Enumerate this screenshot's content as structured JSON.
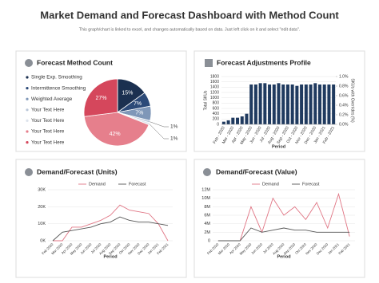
{
  "header": {
    "title": "Market Demand and Forecast Dashboard with Method Count",
    "subtitle": "This graph/chart is linked to excel, and changes automatically based on data. Just left click on it and select \"edit data\"."
  },
  "chart_data": [
    {
      "type": "pie",
      "title": "Forecast Method Count",
      "categories": [
        "Single Exp. Smoothing",
        "Intermittence Smoothing",
        "Weighted Average",
        "Your Text Here",
        "Your Text Here",
        "Your Text Here",
        "Your Text Here"
      ],
      "values": [
        15,
        7,
        7,
        1,
        1,
        42,
        27
      ],
      "value_labels": [
        "15%",
        "7%",
        "7%",
        "1%",
        "1%",
        "42%",
        "27%"
      ],
      "colors": [
        "#1b3050",
        "#2c4a78",
        "#7f97b8",
        "#b9c6d8",
        "#dde3ec",
        "#e67f8c",
        "#d5475c"
      ]
    },
    {
      "type": "bar",
      "title": "Forecast Adjustments Profile",
      "categories": [
        "Feb - 2020",
        null,
        "Mar - 2020",
        null,
        "Apr - 2020",
        null,
        "May - 2020",
        null,
        "Jun - 2020",
        null,
        "Jul - 2020",
        null,
        "Aug - 2020",
        null,
        "Sep - 2020",
        null,
        "Oct - 2020",
        null,
        "Nov - 2020",
        null,
        "Dec - 2020",
        null,
        "Jan - 2021",
        null,
        "Feb - 2021"
      ],
      "values": [
        100,
        150,
        250,
        250,
        300,
        400,
        1500,
        1500,
        1550,
        1550,
        1500,
        1500,
        1550,
        1500,
        1500,
        1500,
        1450,
        1500,
        1500,
        1500,
        1550,
        1500,
        1500,
        1500,
        1500
      ],
      "color": "#1f3a5f",
      "ylim": [
        0,
        1800
      ],
      "yticks": [
        0,
        200,
        400,
        600,
        800,
        1000,
        1200,
        1400,
        1600,
        1800
      ],
      "y2lim": [
        0,
        1
      ],
      "y2ticks": [
        {
          "value": 0,
          "label": "0.0%"
        },
        {
          "value": 0.2,
          "label": "0.2%"
        },
        {
          "value": 0.4,
          "label": "0.4%"
        },
        {
          "value": 0.6,
          "label": "0.6%"
        },
        {
          "value": 0.8,
          "label": "0.8%"
        },
        {
          "value": 1,
          "label": "1.0%"
        }
      ],
      "x_label": "Period",
      "y_label": "Total SKUs",
      "y2_label": "SKUs with Overrides (%)"
    },
    {
      "type": "line",
      "title": "Demand/Forecast (Units)",
      "categories": [
        "Feb 2020",
        "Mar 2020",
        "Apr 2020",
        "May 2020",
        "Jun 2020",
        "Jul 2020",
        "Aug 2020",
        "Sep 2020",
        "Oct 2020",
        "Nov 2020",
        "Dec 2020",
        "Jan 2021",
        "Feb 2021"
      ],
      "series": [
        {
          "name": "Demand",
          "color": "#e07584",
          "values": [
            0,
            0,
            8000,
            8000,
            10000,
            12000,
            15000,
            21000,
            18000,
            17000,
            16000,
            10000,
            0
          ]
        },
        {
          "name": "Forecast",
          "color": "#555555",
          "values": [
            0,
            5000,
            6000,
            7000,
            8000,
            10000,
            11000,
            14000,
            12000,
            11000,
            11000,
            10000,
            9000
          ]
        }
      ],
      "ylim": [
        0,
        30000
      ],
      "yticks": [
        {
          "value": 0,
          "label": "0K"
        },
        {
          "value": 10000,
          "label": "10K"
        },
        {
          "value": 20000,
          "label": "20K"
        },
        {
          "value": 30000,
          "label": "30K"
        }
      ],
      "x_label": "Period"
    },
    {
      "type": "line",
      "title": "Demand/Forecast (Value)",
      "categories": [
        "Feb 2020",
        "Mar 2020",
        "Apr 2020",
        "May 2020",
        "Jun 2020",
        "Jul 2020",
        "Aug 2020",
        "Sep 2020",
        "Oct 2020",
        "Nov 2020",
        "Dec 2020",
        "Jan 2021",
        "Feb 2021"
      ],
      "series": [
        {
          "name": "Demand",
          "color": "#e07584",
          "values": [
            0,
            0,
            0,
            8000000,
            2000000,
            10000000,
            6000000,
            8000000,
            5000000,
            9000000,
            3000000,
            11000000,
            1000000
          ]
        },
        {
          "name": "Forecast",
          "color": "#555555",
          "values": [
            0,
            0,
            0,
            3000000,
            2000000,
            2500000,
            3000000,
            2500000,
            2500000,
            2000000,
            2000000,
            2000000,
            2000000
          ]
        }
      ],
      "ylim": [
        0,
        12000000
      ],
      "yticks": [
        {
          "value": 0,
          "label": "0"
        },
        {
          "value": 2000000,
          "label": "2M"
        },
        {
          "value": 4000000,
          "label": "4M"
        },
        {
          "value": 6000000,
          "label": "6M"
        },
        {
          "value": 8000000,
          "label": "8M"
        },
        {
          "value": 10000000,
          "label": "10M"
        },
        {
          "value": 12000000,
          "label": "12M"
        }
      ],
      "x_label": "Period"
    }
  ]
}
